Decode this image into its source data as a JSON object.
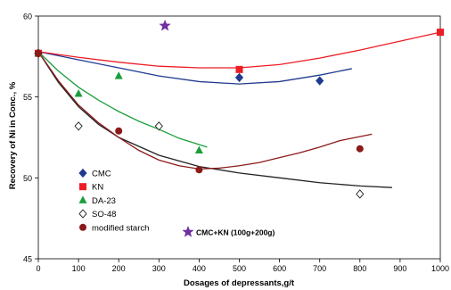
{
  "chart_data": {
    "type": "scatter",
    "xlabel": "Dosages of depressants,g/t",
    "ylabel": "Recovery of Ni in Conc., %",
    "xlim": [
      0,
      1000
    ],
    "ylim": [
      45,
      60
    ],
    "x_ticks": [
      0,
      100,
      200,
      300,
      400,
      500,
      600,
      700,
      800,
      900,
      1000
    ],
    "y_ticks": [
      45,
      50,
      55,
      60
    ],
    "grid": false,
    "legend_position": "lower-left",
    "series": [
      {
        "name": "CMC",
        "marker": "diamond",
        "color": "#1f3a8f",
        "points": [
          [
            0,
            57.7
          ],
          [
            500,
            56.2
          ],
          [
            700,
            56.0
          ]
        ],
        "trend": [
          [
            0,
            57.8
          ],
          [
            100,
            57.3
          ],
          [
            200,
            56.8
          ],
          [
            300,
            56.3
          ],
          [
            400,
            55.95
          ],
          [
            500,
            55.8
          ],
          [
            600,
            55.95
          ],
          [
            700,
            56.35
          ],
          [
            780,
            56.75
          ]
        ]
      },
      {
        "name": "KN",
        "marker": "square",
        "color": "#ee1c25",
        "points": [
          [
            0,
            57.7
          ],
          [
            500,
            56.7
          ],
          [
            1000,
            59.0
          ]
        ],
        "trend": [
          [
            0,
            57.8
          ],
          [
            100,
            57.45
          ],
          [
            200,
            57.15
          ],
          [
            300,
            56.9
          ],
          [
            400,
            56.8
          ],
          [
            500,
            56.8
          ],
          [
            600,
            57.0
          ],
          [
            700,
            57.4
          ],
          [
            800,
            57.9
          ],
          [
            900,
            58.45
          ],
          [
            1000,
            59.0
          ]
        ]
      },
      {
        "name": "DA-23",
        "marker": "triangle",
        "color": "#1a9e3c",
        "points": [
          [
            0,
            57.7
          ],
          [
            100,
            55.2
          ],
          [
            200,
            56.3
          ],
          [
            400,
            51.7
          ]
        ],
        "trend": [
          [
            0,
            57.8
          ],
          [
            50,
            56.6
          ],
          [
            100,
            55.6
          ],
          [
            150,
            54.8
          ],
          [
            200,
            54.1
          ],
          [
            250,
            53.5
          ],
          [
            300,
            53.0
          ],
          [
            350,
            52.45
          ],
          [
            420,
            51.9
          ]
        ]
      },
      {
        "name": "SO-48",
        "marker": "open-diamond",
        "color": "#222222",
        "points": [
          [
            0,
            57.7
          ],
          [
            100,
            53.2
          ],
          [
            300,
            53.2
          ],
          [
            800,
            49.0
          ]
        ],
        "trend": [
          [
            0,
            57.8
          ],
          [
            50,
            55.9
          ],
          [
            100,
            54.4
          ],
          [
            150,
            53.3
          ],
          [
            200,
            52.5
          ],
          [
            300,
            51.4
          ],
          [
            400,
            50.7
          ],
          [
            500,
            50.3
          ],
          [
            600,
            50.0
          ],
          [
            700,
            49.7
          ],
          [
            800,
            49.5
          ],
          [
            880,
            49.4
          ]
        ]
      },
      {
        "name": "modified starch",
        "marker": "circle",
        "color": "#8b1a1a",
        "points": [
          [
            0,
            57.7
          ],
          [
            200,
            52.9
          ],
          [
            400,
            50.5
          ],
          [
            800,
            51.8
          ]
        ],
        "trend": [
          [
            0,
            57.8
          ],
          [
            50,
            56.0
          ],
          [
            100,
            54.5
          ],
          [
            150,
            53.4
          ],
          [
            200,
            52.5
          ],
          [
            250,
            51.7
          ],
          [
            300,
            51.1
          ],
          [
            350,
            50.75
          ],
          [
            400,
            50.55
          ],
          [
            450,
            50.6
          ],
          [
            500,
            50.75
          ],
          [
            550,
            50.95
          ],
          [
            600,
            51.25
          ],
          [
            650,
            51.55
          ],
          [
            700,
            51.9
          ],
          [
            750,
            52.3
          ],
          [
            830,
            52.7
          ]
        ]
      },
      {
        "name": "CMC+KN (100g+200g)",
        "marker": "star",
        "color": "#7030a0",
        "points": [
          [
            315,
            59.4
          ]
        ]
      }
    ]
  }
}
